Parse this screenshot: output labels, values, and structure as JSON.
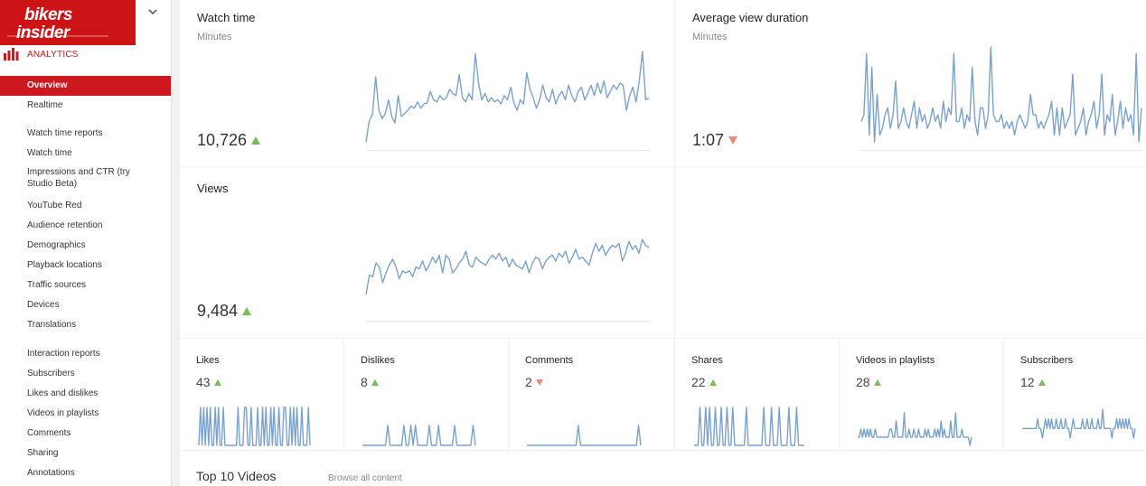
{
  "brand": {
    "name": "bikers insider",
    "accent": "#cc1417"
  },
  "sidebar": {
    "section_label": "ANALYTICS",
    "items": [
      {
        "label": "Overview",
        "active": true
      },
      {
        "label": "Realtime"
      },
      {
        "label": "Watch time reports"
      },
      {
        "label": "Watch time"
      },
      {
        "label": "Impressions and CTR (try Studio Beta)"
      },
      {
        "label": "YouTube Red"
      },
      {
        "label": "Audience retention"
      },
      {
        "label": "Demographics"
      },
      {
        "label": "Playback locations"
      },
      {
        "label": "Traffic sources"
      },
      {
        "label": "Devices"
      },
      {
        "label": "Translations"
      },
      {
        "label": "Interaction reports"
      },
      {
        "label": "Subscribers"
      },
      {
        "label": "Likes and dislikes"
      },
      {
        "label": "Videos in playlists"
      },
      {
        "label": "Comments"
      },
      {
        "label": "Sharing"
      },
      {
        "label": "Annotations"
      }
    ]
  },
  "watch_time": {
    "title": "Watch time",
    "unit": "Minutes",
    "value": "10,726",
    "trend": "up"
  },
  "avg_view_duration": {
    "title": "Average view duration",
    "unit": "Minutes",
    "value": "1:07",
    "trend": "down"
  },
  "views": {
    "title": "Views",
    "value": "9,484",
    "trend": "up"
  },
  "metrics": [
    {
      "title": "Likes",
      "value": "43",
      "trend": "up"
    },
    {
      "title": "Dislikes",
      "value": "8",
      "trend": "up"
    },
    {
      "title": "Comments",
      "value": "2",
      "trend": "down"
    },
    {
      "title": "Shares",
      "value": "22",
      "trend": "up"
    },
    {
      "title": "Videos in playlists",
      "value": "28",
      "trend": "up"
    },
    {
      "title": "Subscribers",
      "value": "12",
      "trend": "up"
    }
  ],
  "top_videos": {
    "title": "Top 10 Videos",
    "browse_label": "Browse all content"
  },
  "chart_colors": {
    "line": "#7aa2cf",
    "baseline": "#e5e5e5",
    "up": "#7cbb5a",
    "down": "#e98c7b"
  },
  "chart_data": [
    {
      "type": "line",
      "name": "watch_time_sparkline",
      "values": [
        18,
        38,
        44,
        80,
        48,
        40,
        45,
        58,
        42,
        36,
        62,
        42,
        45,
        48,
        52,
        50,
        56,
        50,
        54,
        55,
        66,
        58,
        56,
        62,
        58,
        60,
        68,
        64,
        62,
        82,
        60,
        56,
        64,
        58,
        102,
        74,
        58,
        64,
        56,
        60,
        56,
        58,
        54,
        62,
        58,
        70,
        55,
        48,
        58,
        54,
        84,
        68,
        60,
        50,
        58,
        72,
        60,
        56,
        68,
        54,
        62,
        66,
        58,
        72,
        62,
        56,
        66,
        70,
        58,
        64,
        72,
        62,
        74,
        64,
        76,
        60,
        66,
        72,
        68,
        74,
        72,
        48,
        62,
        70,
        56,
        76,
        104,
        58,
        60
      ]
    },
    {
      "type": "line",
      "name": "avg_view_duration_sparkline",
      "values": [
        56,
        58,
        76,
        52,
        72,
        50,
        64,
        52,
        54,
        58,
        60,
        54,
        58,
        68,
        54,
        56,
        60,
        56,
        54,
        58,
        62,
        54,
        60,
        56,
        58,
        54,
        56,
        60,
        56,
        58,
        54,
        62,
        56,
        60,
        58,
        76,
        56,
        56,
        60,
        54,
        58,
        56,
        72,
        56,
        52,
        60,
        60,
        54,
        58,
        78,
        58,
        56,
        56,
        58,
        54,
        56,
        54,
        56,
        52,
        56,
        58,
        56,
        54,
        56,
        64,
        58,
        58,
        54,
        56,
        54,
        56,
        58,
        62,
        52,
        60,
        52,
        60,
        54,
        56,
        58,
        70,
        52,
        54,
        56,
        60,
        52,
        56,
        58,
        62,
        54,
        58,
        70,
        52,
        58,
        56,
        64,
        52,
        56,
        62,
        54,
        60,
        56,
        58,
        52,
        76,
        50,
        60
      ]
    },
    {
      "type": "line",
      "name": "views_sparkline",
      "values": [
        22,
        42,
        40,
        54,
        50,
        34,
        44,
        52,
        58,
        50,
        38,
        46,
        44,
        46,
        40,
        50,
        48,
        56,
        46,
        52,
        60,
        54,
        62,
        44,
        62,
        58,
        44,
        48,
        54,
        58,
        66,
        52,
        50,
        60,
        56,
        54,
        52,
        58,
        62,
        58,
        64,
        56,
        60,
        50,
        58,
        52,
        50,
        48,
        56,
        44,
        54,
        60,
        58,
        48,
        56,
        60,
        62,
        56,
        64,
        60,
        66,
        54,
        60,
        68,
        58,
        60,
        56,
        52,
        64,
        74,
        66,
        72,
        62,
        68,
        72,
        70,
        74,
        56,
        64,
        76,
        68,
        72,
        64,
        78,
        72,
        70
      ],
      "ylim": [
        0,
        90
      ]
    },
    {
      "type": "line",
      "name": "likes_sparkline",
      "values": [
        0,
        1,
        0,
        1,
        0,
        1,
        0,
        1,
        0,
        0,
        1,
        0,
        1,
        0,
        0,
        1,
        0,
        0,
        0,
        0,
        0,
        0,
        0,
        0,
        1,
        0,
        0,
        0,
        1,
        1,
        0,
        0,
        1,
        0,
        0,
        0,
        1,
        0,
        0,
        1,
        0,
        1,
        0,
        0,
        1,
        0,
        1,
        0,
        0,
        1,
        0,
        0,
        1,
        1,
        0,
        0,
        1,
        0,
        1,
        0,
        1,
        0,
        0,
        1,
        0,
        0,
        0,
        1,
        0
      ]
    },
    {
      "type": "line",
      "name": "dislikes_sparkline",
      "values": [
        0,
        0,
        0,
        0,
        0,
        0,
        0,
        0,
        0,
        0,
        0,
        1,
        0,
        0,
        0,
        0,
        0,
        0,
        1,
        0,
        0,
        1,
        0,
        1,
        0,
        0,
        0,
        0,
        0,
        1,
        0,
        0,
        0,
        1,
        0,
        0,
        0,
        0,
        0,
        0,
        1,
        0,
        0,
        0,
        0,
        0,
        0,
        0,
        1,
        0
      ]
    },
    {
      "type": "line",
      "name": "comments_sparkline",
      "values": [
        0,
        0,
        0,
        0,
        0,
        0,
        0,
        0,
        0,
        0,
        0,
        0,
        0,
        0,
        0,
        0,
        0,
        0,
        0,
        0,
        0,
        0,
        0,
        1,
        0,
        0,
        0,
        0,
        0,
        0,
        0,
        0,
        0,
        0,
        0,
        0,
        0,
        0,
        0,
        0,
        0,
        0,
        0,
        0,
        0,
        0,
        0,
        0,
        0,
        0,
        1,
        0
      ]
    },
    {
      "type": "line",
      "name": "shares_sparkline",
      "values": [
        0,
        0,
        0,
        1,
        0,
        0,
        1,
        0,
        1,
        0,
        0,
        1,
        0,
        0,
        1,
        0,
        0,
        1,
        0,
        0,
        1,
        0,
        0,
        0,
        0,
        0,
        0,
        1,
        0,
        0,
        0,
        0,
        0,
        0,
        0,
        0,
        1,
        0,
        0,
        0,
        1,
        0,
        0,
        0,
        1,
        0,
        0,
        0,
        0,
        1,
        0,
        0,
        0,
        1,
        0,
        0,
        0,
        0
      ]
    },
    {
      "type": "line",
      "name": "playlists_sparkline",
      "values": [
        0,
        0,
        1,
        0,
        1,
        0,
        1,
        0,
        1,
        0,
        0,
        1,
        0,
        0,
        0,
        0,
        0,
        0,
        0,
        0,
        1,
        1,
        0,
        0,
        2,
        0,
        0,
        0,
        0,
        3,
        0,
        0,
        1,
        0,
        0,
        1,
        0,
        0,
        1,
        0,
        0,
        0,
        1,
        0,
        1,
        0,
        0,
        0,
        1,
        0,
        1,
        0,
        2,
        0,
        1,
        0,
        0,
        0,
        2,
        0,
        0,
        3,
        0,
        0,
        0,
        1,
        0,
        0,
        0,
        0,
        -1,
        0
      ]
    },
    {
      "type": "line",
      "name": "subscribers_sparkline",
      "values": [
        0,
        0,
        0,
        0,
        0,
        0,
        0,
        0,
        0,
        0,
        1,
        0,
        0,
        -1,
        0,
        1,
        0,
        1,
        0,
        1,
        0,
        0,
        1,
        0,
        0,
        1,
        0,
        0,
        1,
        0,
        0,
        -1,
        0,
        1,
        0,
        0,
        0,
        0,
        0,
        1,
        0,
        0,
        1,
        0,
        0,
        1,
        0,
        0,
        0,
        1,
        0,
        0,
        2,
        0,
        0,
        0,
        0,
        0,
        -1,
        0,
        0,
        1,
        0,
        1,
        0,
        1,
        0,
        1,
        0,
        1,
        0,
        0,
        -1,
        0
      ]
    }
  ]
}
